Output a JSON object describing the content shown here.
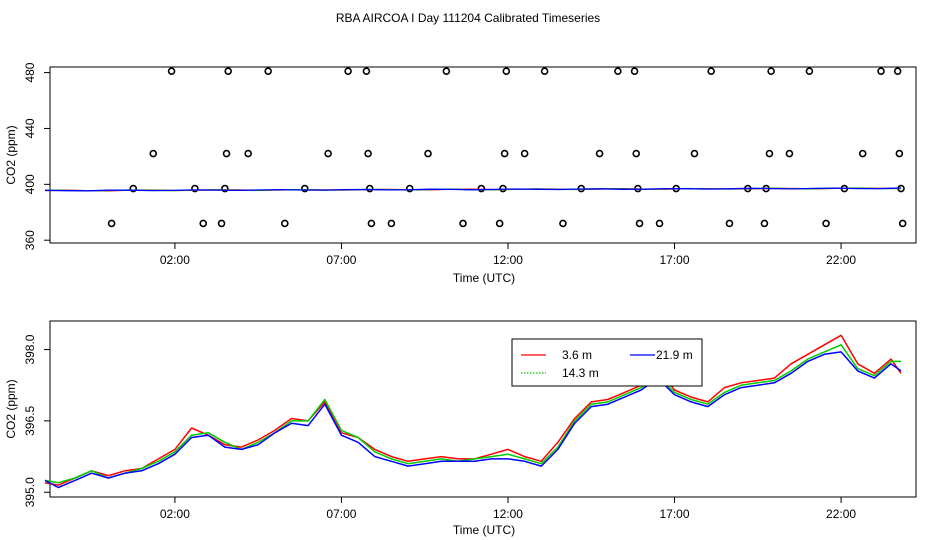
{
  "title": "RBA AIRCOA I  Day 111204  Calibrated Timeseries",
  "chart_data": [
    {
      "type": "scatter",
      "xlabel": "Time (UTC)",
      "ylabel": "CO2 (ppm)",
      "x_range_hours": [
        -1.75,
        24.25
      ],
      "ylim": [
        358,
        484
      ],
      "x_ticks": [
        {
          "value": 2,
          "label": "02:00"
        },
        {
          "value": 7,
          "label": "07:00"
        },
        {
          "value": 12,
          "label": "12:00"
        },
        {
          "value": 17,
          "label": "17:00"
        },
        {
          "value": 22,
          "label": "22:00"
        }
      ],
      "y_ticks": [
        {
          "value": 360,
          "label": "360"
        },
        {
          "value": 400,
          "label": "400"
        },
        {
          "value": 440,
          "label": "440"
        },
        {
          "value": 480,
          "label": "480"
        }
      ],
      "points": [
        {
          "x": 0.1,
          "y": 372
        },
        {
          "x": 0.75,
          "y": 397
        },
        {
          "x": 1.35,
          "y": 422
        },
        {
          "x": 1.9,
          "y": 481
        },
        {
          "x": 2.6,
          "y": 397
        },
        {
          "x": 2.85,
          "y": 372
        },
        {
          "x": 3.4,
          "y": 372
        },
        {
          "x": 3.55,
          "y": 422
        },
        {
          "x": 3.6,
          "y": 481
        },
        {
          "x": 3.5,
          "y": 397
        },
        {
          "x": 4.2,
          "y": 422
        },
        {
          "x": 4.8,
          "y": 481
        },
        {
          "x": 5.3,
          "y": 372
        },
        {
          "x": 5.9,
          "y": 397
        },
        {
          "x": 6.6,
          "y": 422
        },
        {
          "x": 7.2,
          "y": 481
        },
        {
          "x": 7.75,
          "y": 481
        },
        {
          "x": 7.8,
          "y": 422
        },
        {
          "x": 7.85,
          "y": 397
        },
        {
          "x": 7.9,
          "y": 372
        },
        {
          "x": 8.5,
          "y": 372
        },
        {
          "x": 9.05,
          "y": 397
        },
        {
          "x": 9.6,
          "y": 422
        },
        {
          "x": 10.15,
          "y": 481
        },
        {
          "x": 10.65,
          "y": 372
        },
        {
          "x": 11.2,
          "y": 397
        },
        {
          "x": 11.75,
          "y": 372
        },
        {
          "x": 11.85,
          "y": 397
        },
        {
          "x": 11.9,
          "y": 422
        },
        {
          "x": 11.95,
          "y": 481
        },
        {
          "x": 12.5,
          "y": 422
        },
        {
          "x": 13.1,
          "y": 481
        },
        {
          "x": 13.65,
          "y": 372
        },
        {
          "x": 14.2,
          "y": 397
        },
        {
          "x": 14.75,
          "y": 422
        },
        {
          "x": 15.3,
          "y": 481
        },
        {
          "x": 15.8,
          "y": 481
        },
        {
          "x": 15.85,
          "y": 422
        },
        {
          "x": 15.9,
          "y": 397
        },
        {
          "x": 15.95,
          "y": 372
        },
        {
          "x": 16.55,
          "y": 372
        },
        {
          "x": 17.05,
          "y": 397
        },
        {
          "x": 17.6,
          "y": 422
        },
        {
          "x": 18.1,
          "y": 481
        },
        {
          "x": 18.65,
          "y": 372
        },
        {
          "x": 19.2,
          "y": 397
        },
        {
          "x": 19.7,
          "y": 372
        },
        {
          "x": 19.75,
          "y": 397
        },
        {
          "x": 19.85,
          "y": 422
        },
        {
          "x": 19.9,
          "y": 481
        },
        {
          "x": 20.45,
          "y": 422
        },
        {
          "x": 21.05,
          "y": 481
        },
        {
          "x": 21.55,
          "y": 372
        },
        {
          "x": 22.1,
          "y": 397
        },
        {
          "x": 22.65,
          "y": 422
        },
        {
          "x": 23.2,
          "y": 481
        },
        {
          "x": 23.7,
          "y": 481
        },
        {
          "x": 23.75,
          "y": 422
        },
        {
          "x": 23.8,
          "y": 397
        },
        {
          "x": 23.85,
          "y": 372
        }
      ],
      "line_series": [
        {
          "color": "#ff0000",
          "y_start": 395.5,
          "y_end": 397.2
        },
        {
          "color": "#00cc00",
          "y_start": 395.5,
          "y_end": 397.2
        },
        {
          "color": "#0000ff",
          "y_start": 395.5,
          "y_end": 397.2
        }
      ]
    },
    {
      "type": "line",
      "xlabel": "Time (UTC)",
      "ylabel": "CO2 (ppm)",
      "x_range_hours": [
        -1.75,
        24.25
      ],
      "ylim": [
        394.9,
        398.6
      ],
      "x_ticks": [
        {
          "value": 2,
          "label": "02:00"
        },
        {
          "value": 7,
          "label": "07:00"
        },
        {
          "value": 12,
          "label": "12:00"
        },
        {
          "value": 17,
          "label": "17:00"
        },
        {
          "value": 22,
          "label": "22:00"
        }
      ],
      "y_ticks": [
        {
          "value": 395.0,
          "label": "395.0"
        },
        {
          "value": 396.5,
          "label": "396.5"
        },
        {
          "value": 398.0,
          "label": "398.0"
        }
      ],
      "legend": {
        "position": "top-right",
        "entries": [
          {
            "label": "3.6 m",
            "color": "#ff0000",
            "dash": "solid"
          },
          {
            "label": "21.9 m",
            "color": "#0000ff",
            "dash": "solid"
          },
          {
            "label": "14.3 m",
            "color": "#00cc00",
            "dash": "dotted"
          }
        ]
      },
      "x_key_hours": [
        -1.9,
        -1.5,
        -1.0,
        -0.5,
        0.0,
        0.5,
        1.0,
        1.5,
        2.0,
        2.5,
        3.0,
        3.5,
        4.0,
        4.5,
        5.0,
        5.5,
        6.0,
        6.5,
        7.0,
        7.5,
        8.0,
        8.5,
        9.0,
        9.5,
        10.0,
        10.5,
        11.0,
        11.5,
        12.0,
        12.5,
        13.0,
        13.5,
        14.0,
        14.5,
        15.0,
        15.5,
        16.0,
        16.5,
        17.0,
        17.5,
        18.0,
        18.5,
        19.0,
        19.5,
        20.0,
        20.5,
        21.0,
        21.5,
        22.0,
        22.5,
        23.0,
        23.5,
        23.8
      ],
      "series": [
        {
          "name": "3.6 m",
          "color": "#ff0000",
          "y": [
            395.2,
            395.15,
            395.3,
            395.45,
            395.35,
            395.45,
            395.5,
            395.7,
            395.9,
            396.35,
            396.2,
            396.0,
            395.95,
            396.1,
            396.3,
            396.55,
            396.5,
            396.9,
            396.25,
            396.15,
            395.9,
            395.75,
            395.65,
            395.7,
            395.75,
            395.7,
            395.7,
            395.8,
            395.9,
            395.75,
            395.65,
            396.05,
            396.55,
            396.9,
            396.95,
            397.1,
            397.25,
            397.6,
            397.15,
            397.0,
            396.9,
            397.2,
            397.3,
            397.35,
            397.4,
            397.7,
            397.9,
            398.1,
            398.3,
            397.7,
            397.5,
            397.8,
            397.5
          ]
        },
        {
          "name": "14.3 m",
          "color": "#00cc00",
          "y": [
            395.25,
            395.2,
            395.3,
            395.45,
            395.3,
            395.4,
            395.5,
            395.65,
            395.85,
            396.2,
            396.25,
            396.05,
            395.9,
            396.05,
            396.25,
            396.5,
            396.5,
            396.95,
            396.3,
            396.15,
            395.85,
            395.7,
            395.6,
            395.65,
            395.7,
            395.65,
            395.7,
            395.75,
            395.8,
            395.7,
            395.6,
            395.95,
            396.5,
            396.85,
            396.9,
            397.05,
            397.2,
            397.45,
            397.1,
            396.95,
            396.85,
            397.1,
            397.25,
            397.3,
            397.35,
            397.55,
            397.8,
            397.95,
            398.1,
            397.6,
            397.45,
            397.75,
            397.75
          ]
        },
        {
          "name": "21.9 m",
          "color": "#0000ff",
          "y": [
            395.25,
            395.1,
            395.25,
            395.4,
            395.3,
            395.4,
            395.45,
            395.6,
            395.8,
            396.15,
            396.2,
            395.95,
            395.9,
            396.0,
            396.25,
            396.45,
            396.4,
            396.85,
            396.2,
            396.05,
            395.75,
            395.65,
            395.55,
            395.6,
            395.65,
            395.65,
            395.65,
            395.7,
            395.7,
            395.65,
            395.55,
            395.9,
            396.45,
            396.8,
            396.85,
            397.0,
            397.15,
            397.4,
            397.05,
            396.9,
            396.8,
            397.05,
            397.2,
            397.25,
            397.3,
            397.5,
            397.75,
            397.9,
            397.95,
            397.55,
            397.4,
            397.7,
            397.55
          ]
        }
      ]
    }
  ]
}
